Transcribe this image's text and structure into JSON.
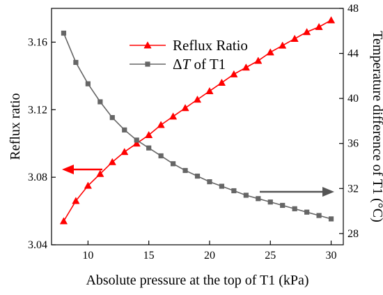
{
  "chart_data": {
    "type": "line",
    "title": "",
    "xlabel": "Absolute pressure at the top of T1 (kPa)",
    "ylabel_left": "Reflux ratio",
    "ylabel_right": "Temperature difference of T1 (°C)",
    "xlim": [
      7,
      31
    ],
    "ylim_left": [
      3.04,
      3.18
    ],
    "ylim_right": [
      27,
      48
    ],
    "x_ticks": [
      10,
      15,
      20,
      25,
      30
    ],
    "y_left_ticks": [
      3.04,
      3.08,
      3.12,
      3.16
    ],
    "y_right_ticks": [
      28,
      32,
      36,
      40,
      44,
      48
    ],
    "grid": false,
    "legend_position": "top-center",
    "x": [
      8,
      9,
      10,
      11,
      12,
      13,
      14,
      15,
      16,
      17,
      18,
      19,
      20,
      21,
      22,
      23,
      24,
      25,
      26,
      27,
      28,
      29,
      30
    ],
    "series": [
      {
        "name": "Reflux Ratio",
        "axis": "left",
        "marker": "triangle",
        "color": "#ff0000",
        "values": [
          3.054,
          3.066,
          3.075,
          3.082,
          3.089,
          3.095,
          3.1,
          3.105,
          3.111,
          3.116,
          3.121,
          3.126,
          3.131,
          3.136,
          3.141,
          3.145,
          3.149,
          3.154,
          3.158,
          3.162,
          3.166,
          3.169,
          3.173
        ]
      },
      {
        "name": "ΔT of T1",
        "name_parts": [
          "Δ",
          "T",
          " of T1"
        ],
        "axis": "right",
        "marker": "square",
        "color": "#666666",
        "values": [
          45.8,
          43.2,
          41.3,
          39.7,
          38.3,
          37.2,
          36.3,
          35.6,
          34.9,
          34.2,
          33.6,
          33.1,
          32.6,
          32.2,
          31.8,
          31.4,
          31.1,
          30.8,
          30.5,
          30.2,
          29.9,
          29.6,
          29.3
        ]
      }
    ],
    "annotations": [
      {
        "type": "arrow",
        "direction": "left",
        "points_to": "left-axis",
        "color": "#ff0000"
      },
      {
        "type": "arrow",
        "direction": "right",
        "points_to": "right-axis",
        "color": "#555555"
      }
    ]
  }
}
